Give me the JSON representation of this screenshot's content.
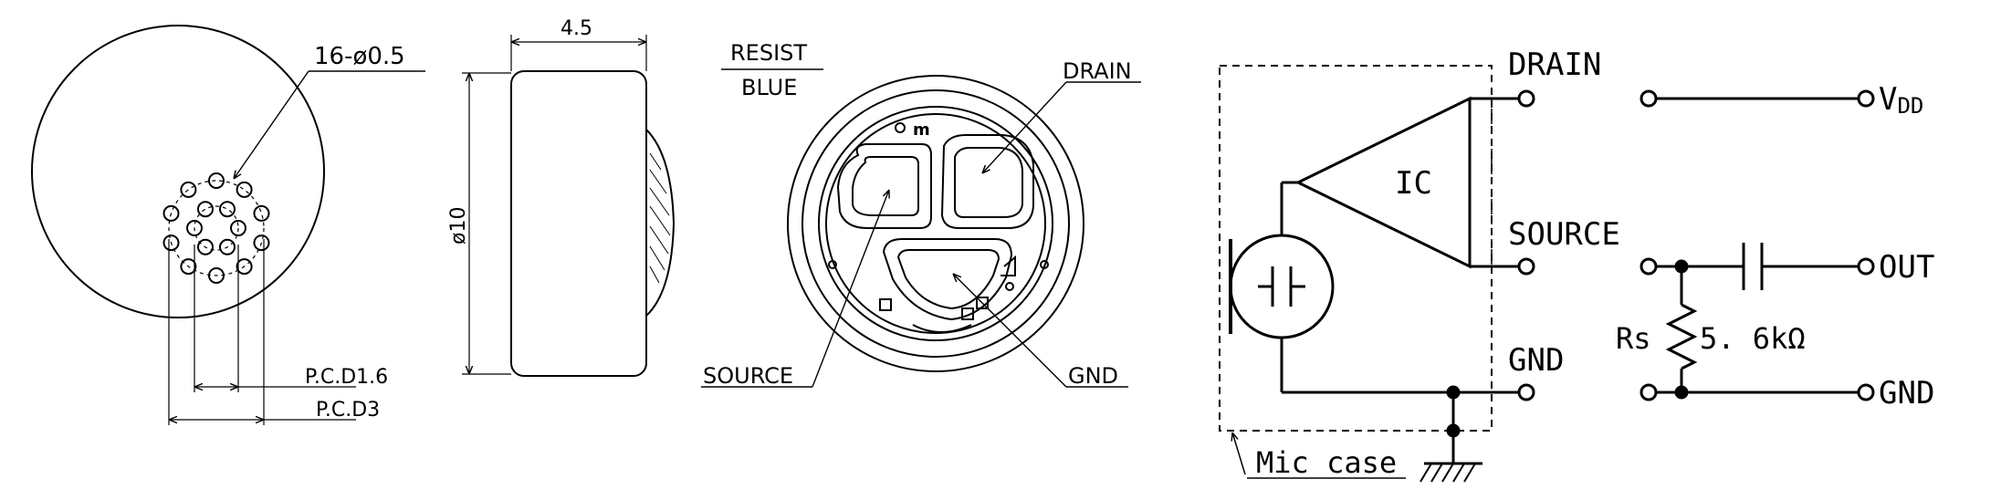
{
  "front_view": {
    "hole_callout": "16-ø0.5",
    "pcd_inner": "P.C.D1.6",
    "pcd_outer": "P.C.D3"
  },
  "side_view": {
    "width_dim": "4.5",
    "diameter_dim": "ø10"
  },
  "back_view": {
    "resist_label": "RESIST",
    "resist_color": "BLUE",
    "drain": "DRAIN",
    "source": "SOURCE",
    "gnd": "GND"
  },
  "circuit": {
    "drain": "DRAIN",
    "source": "SOURCE",
    "gnd": "GND",
    "ic": "IC",
    "mic_case": "Mic case",
    "vdd": "V",
    "vdd_sub": "DD",
    "out": "OUT",
    "gnd_out": "GND",
    "rs": "Rs",
    "rs_value": "5. 6kΩ"
  }
}
